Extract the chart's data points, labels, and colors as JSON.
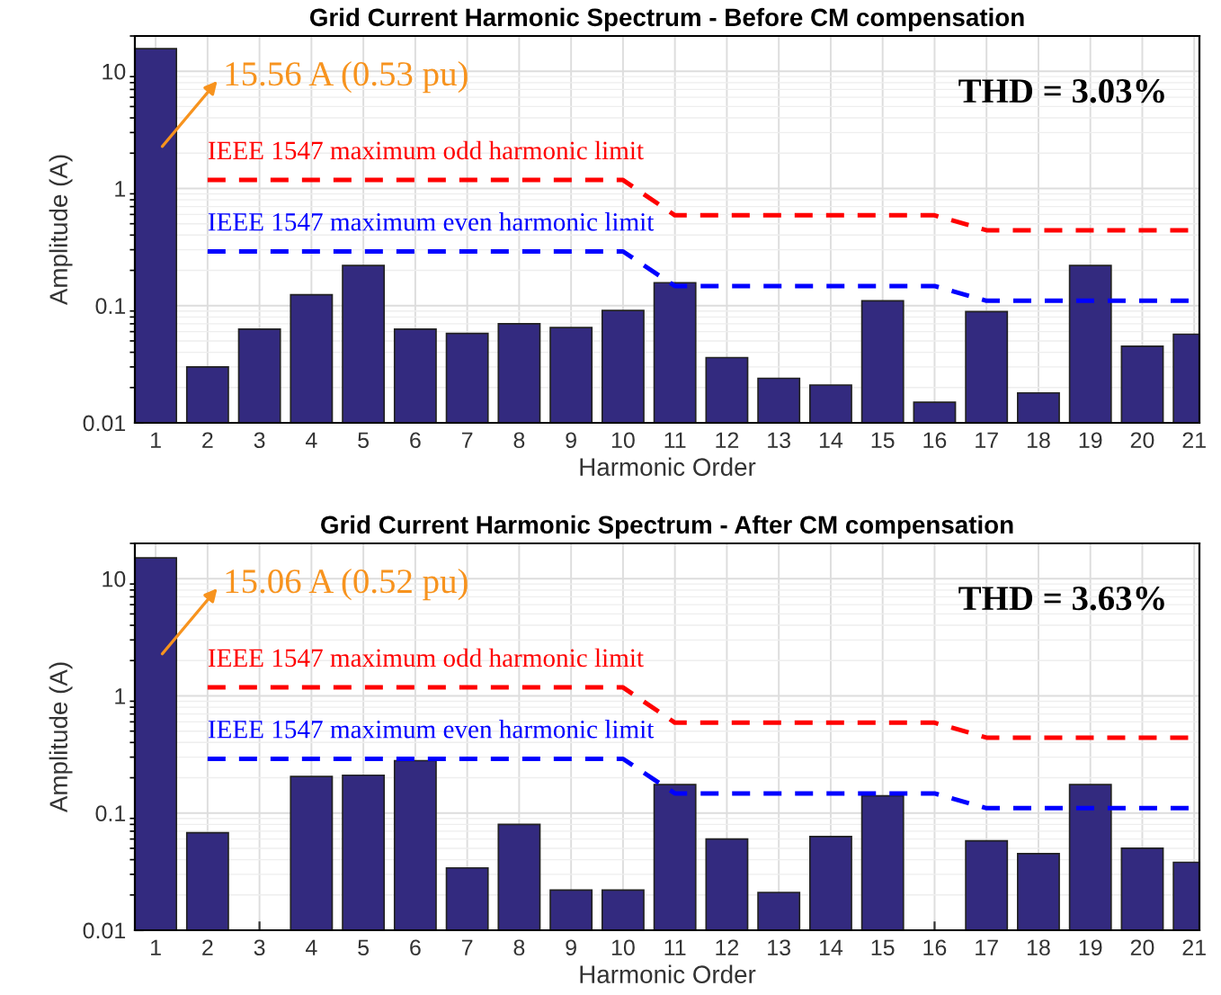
{
  "chart_data": [
    {
      "type": "bar",
      "title": "Grid Current Harmonic Spectrum - Before CM compensation",
      "xlabel": "Harmonic Order",
      "ylabel": "Amplitude (A)",
      "x": [
        1,
        2,
        3,
        4,
        5,
        6,
        7,
        8,
        9,
        10,
        11,
        12,
        13,
        14,
        15,
        16,
        17,
        18,
        19,
        20,
        21
      ],
      "xlim": [
        0.6,
        21.1
      ],
      "xticks": [
        1,
        2,
        3,
        4,
        5,
        6,
        7,
        8,
        9,
        10,
        11,
        12,
        13,
        14,
        15,
        16,
        17,
        18,
        19,
        20,
        21
      ],
      "log": "y",
      "ylim": [
        0.01,
        20
      ],
      "yticks": [
        0.01,
        0.1,
        1,
        10
      ],
      "grid": true,
      "series": [
        {
          "color": "#332a7f",
          "values": [
            15.56,
            0.03,
            0.063,
            0.124,
            0.22,
            0.063,
            0.058,
            0.07,
            0.065,
            0.091,
            0.157,
            0.036,
            0.024,
            0.021,
            0.11,
            0.015,
            0.089,
            0.018,
            0.22,
            0.045,
            0.057
          ]
        },
        {
          "type": "line",
          "name": "IEEE 1547 maximum odd harmonic limit",
          "color": "#ff0000",
          "line_style": "dashed",
          "x": [
            2,
            10,
            11,
            16,
            17,
            21
          ],
          "values": [
            1.18,
            1.18,
            0.59,
            0.59,
            0.44,
            0.44
          ]
        },
        {
          "type": "line",
          "name": "IEEE 1547 maximum even harmonic limit",
          "color": "#0000ff",
          "line_style": "dashed",
          "x": [
            2,
            10,
            11,
            16,
            17,
            21
          ],
          "values": [
            0.29,
            0.29,
            0.147,
            0.147,
            0.11,
            0.11
          ]
        }
      ],
      "annotations": [
        "15.56 A (0.53 pu)",
        "THD = 3.03%"
      ]
    },
    {
      "type": "bar",
      "title": "Grid Current Harmonic Spectrum - After CM compensation",
      "xlabel": "Harmonic Order",
      "ylabel": "Amplitude (A)",
      "x": [
        1,
        2,
        3,
        4,
        5,
        6,
        7,
        8,
        9,
        10,
        11,
        12,
        13,
        14,
        15,
        16,
        17,
        18,
        19,
        20,
        21
      ],
      "xlim": [
        0.6,
        21.1
      ],
      "xticks": [
        1,
        2,
        3,
        4,
        5,
        6,
        7,
        8,
        9,
        10,
        11,
        12,
        13,
        14,
        15,
        16,
        17,
        18,
        19,
        20,
        21
      ],
      "log": "y",
      "ylim": [
        0.01,
        20
      ],
      "yticks": [
        0.01,
        0.1,
        1,
        10
      ],
      "grid": true,
      "series": [
        {
          "color": "#332a7f",
          "values": [
            15.06,
            0.068,
            null,
            0.205,
            0.21,
            0.28,
            0.034,
            0.08,
            0.022,
            0.022,
            0.175,
            0.06,
            0.021,
            0.063,
            0.14,
            null,
            0.058,
            0.045,
            0.175,
            0.05,
            0.038
          ]
        },
        {
          "type": "line",
          "name": "IEEE 1547 maximum odd harmonic limit",
          "color": "#ff0000",
          "line_style": "dashed",
          "x": [
            2,
            10,
            11,
            16,
            17,
            21
          ],
          "values": [
            1.18,
            1.18,
            0.59,
            0.59,
            0.44,
            0.44
          ]
        },
        {
          "type": "line",
          "name": "IEEE 1547 maximum even harmonic limit",
          "color": "#0000ff",
          "line_style": "dashed",
          "x": [
            2,
            10,
            11,
            16,
            17,
            21
          ],
          "values": [
            0.29,
            0.29,
            0.147,
            0.147,
            0.11,
            0.11
          ]
        }
      ],
      "annotations": [
        "15.06 A (0.52 pu)",
        "THD = 3.63%"
      ]
    }
  ]
}
